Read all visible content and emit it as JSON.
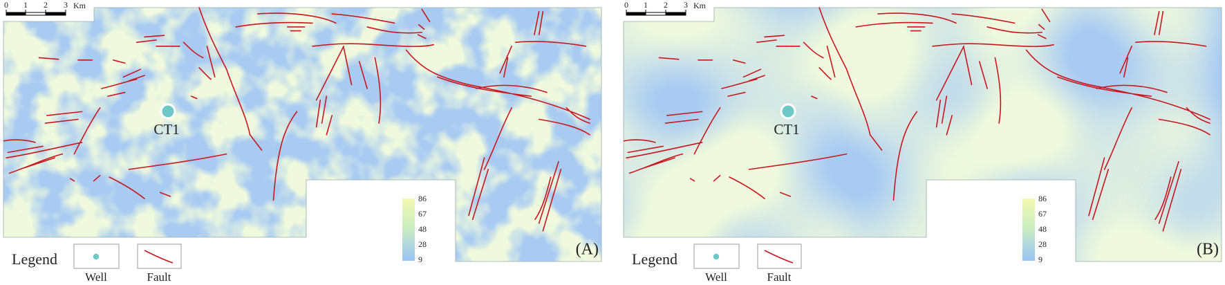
{
  "panels": [
    {
      "label": "(A)",
      "well": {
        "name": "CT1"
      },
      "scale_bar": {
        "ticks": [
          "0",
          "1",
          "2",
          "3"
        ],
        "unit": "Km"
      },
      "colorbar": {
        "ticks": [
          86,
          67,
          48,
          28,
          9
        ]
      },
      "legend": {
        "title": "Legend",
        "items": [
          "Well",
          "Fault"
        ]
      }
    },
    {
      "label": "(B)",
      "well": {
        "name": "CT1"
      },
      "scale_bar": {
        "ticks": [
          "0",
          "1",
          "2",
          "3"
        ],
        "unit": "Km"
      },
      "colorbar": {
        "ticks": [
          86,
          67,
          48,
          28,
          9
        ]
      },
      "legend": {
        "title": "Legend",
        "items": [
          "Well",
          "Fault"
        ]
      }
    }
  ]
}
